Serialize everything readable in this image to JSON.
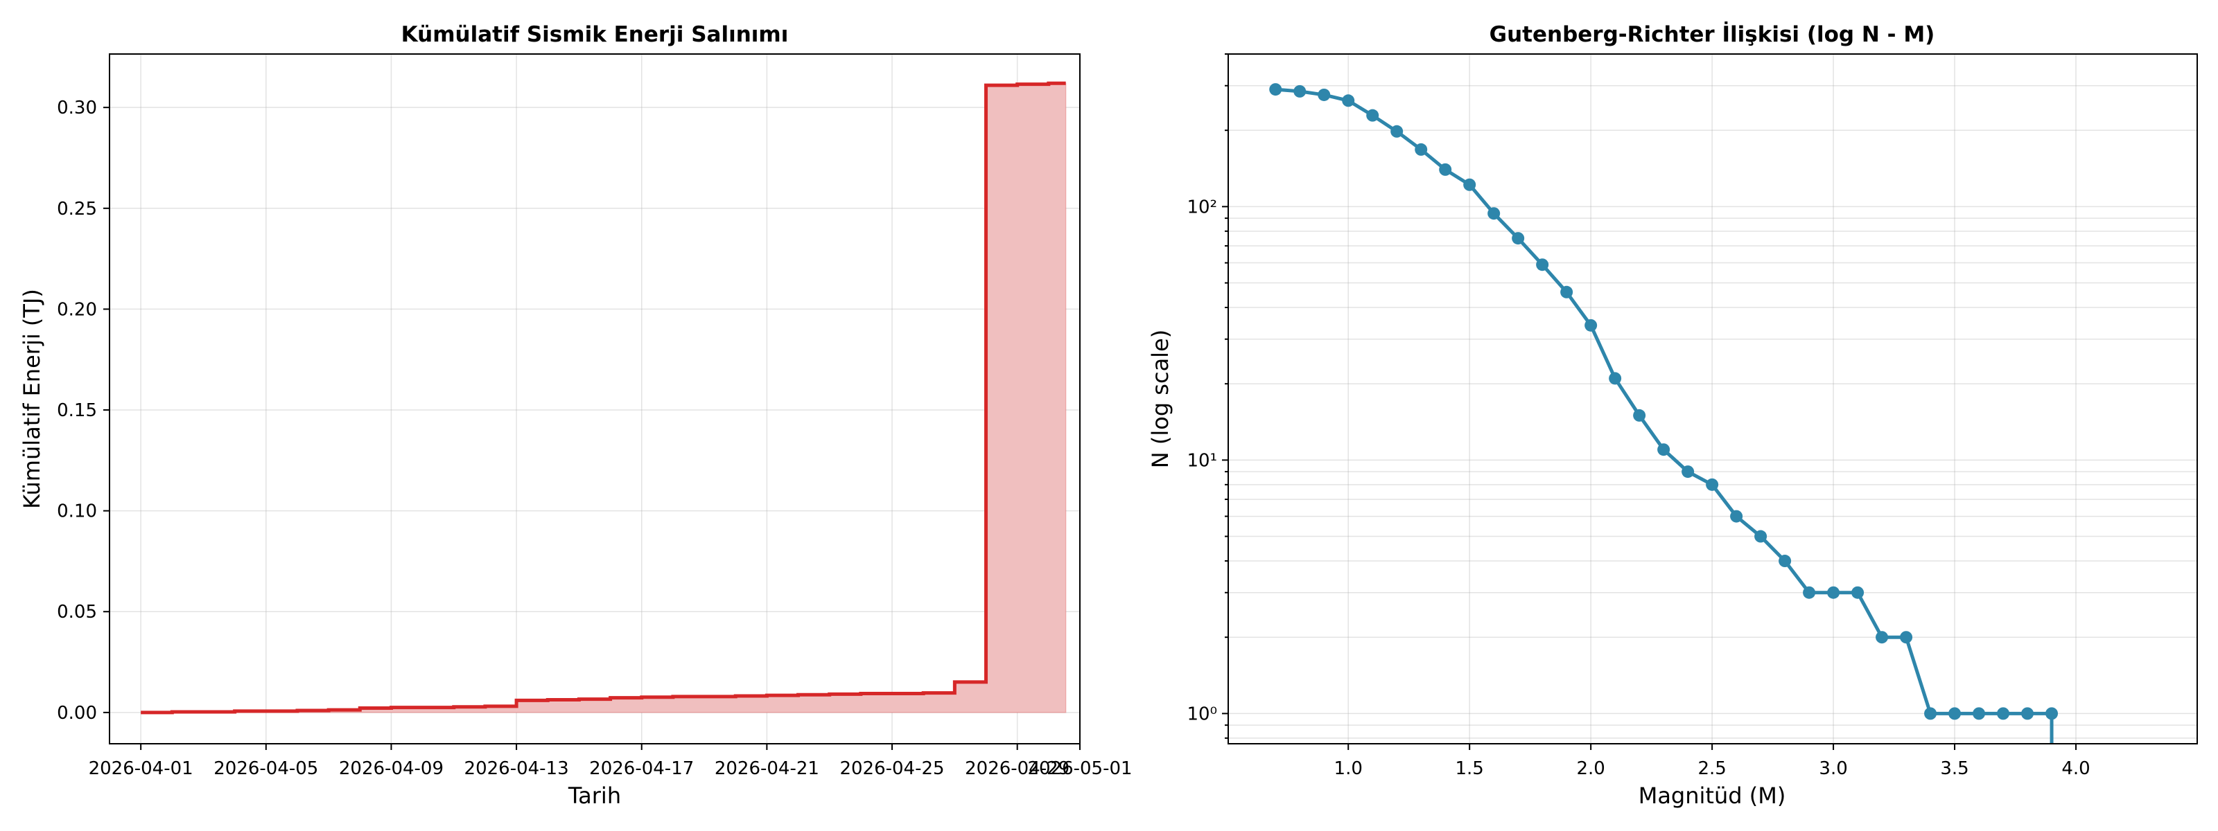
{
  "chart_data": [
    {
      "type": "area",
      "title": "Kümülatif Sismik Enerji Salınımı",
      "xlabel": "Tarih",
      "ylabel": "Kümülatif Enerji (TJ)",
      "x_ticks": [
        "2026-04-01",
        "2026-04-05",
        "2026-04-09",
        "2026-04-13",
        "2026-04-17",
        "2026-04-21",
        "2026-04-25",
        "2026-04-29",
        "2026-05-01"
      ],
      "y_ticks": [
        "0.00",
        "0.05",
        "0.10",
        "0.15",
        "0.20",
        "0.25",
        "0.30"
      ],
      "xlim": [
        "2026-03-31",
        "2026-05-01"
      ],
      "ylim": [
        -0.0155,
        0.3265
      ],
      "grid": true,
      "line_color": "#d62728",
      "fill_color": "#f0bfbf",
      "step": true,
      "points": [
        {
          "x": "2026-04-01",
          "y": 0.0
        },
        {
          "x": "2026-04-02",
          "y": 0.0003
        },
        {
          "x": "2026-04-04",
          "y": 0.0007
        },
        {
          "x": "2026-04-06",
          "y": 0.001
        },
        {
          "x": "2026-04-07",
          "y": 0.0013
        },
        {
          "x": "2026-04-08",
          "y": 0.0022
        },
        {
          "x": "2026-04-09",
          "y": 0.0025
        },
        {
          "x": "2026-04-11",
          "y": 0.0028
        },
        {
          "x": "2026-04-12",
          "y": 0.0031
        },
        {
          "x": "2026-04-13",
          "y": 0.006
        },
        {
          "x": "2026-04-14",
          "y": 0.0063
        },
        {
          "x": "2026-04-15",
          "y": 0.0066
        },
        {
          "x": "2026-04-16",
          "y": 0.0073
        },
        {
          "x": "2026-04-17",
          "y": 0.0076
        },
        {
          "x": "2026-04-18",
          "y": 0.0079
        },
        {
          "x": "2026-04-20",
          "y": 0.0082
        },
        {
          "x": "2026-04-21",
          "y": 0.0085
        },
        {
          "x": "2026-04-22",
          "y": 0.0088
        },
        {
          "x": "2026-04-23",
          "y": 0.0091
        },
        {
          "x": "2026-04-24",
          "y": 0.0094
        },
        {
          "x": "2026-04-26",
          "y": 0.0097
        },
        {
          "x": "2026-04-27",
          "y": 0.0151
        },
        {
          "x": "2026-04-28",
          "y": 0.311
        },
        {
          "x": "2026-04-29",
          "y": 0.3115
        },
        {
          "x": "2026-04-30",
          "y": 0.312
        }
      ]
    },
    {
      "type": "line",
      "title": "Gutenberg-Richter İlişkisi (log N - M)",
      "xlabel": "Magnitüd (M)",
      "ylabel": "N (log scale)",
      "x_ticks": [
        "1.0",
        "1.5",
        "2.0",
        "2.5",
        "3.0",
        "3.5",
        "4.0"
      ],
      "y_ticks": [
        "10⁰",
        "10¹",
        "10²"
      ],
      "xlim": [
        0.505,
        4.5
      ],
      "ylim": [
        0.76,
        400
      ],
      "y_scale": "log",
      "grid": true,
      "line_color": "#2e86ab",
      "marker": "circle",
      "x": [
        0.7,
        0.8,
        0.9,
        1.0,
        1.1,
        1.2,
        1.3,
        1.4,
        1.5,
        1.6,
        1.7,
        1.8,
        1.9,
        2.0,
        2.1,
        2.2,
        2.3,
        2.4,
        2.5,
        2.6,
        2.7,
        2.8,
        2.9,
        3.0,
        3.1,
        3.2,
        3.3,
        3.4,
        3.5,
        3.6,
        3.7,
        3.8,
        3.9
      ],
      "y": [
        290,
        285,
        276,
        262,
        229,
        198,
        168,
        140,
        122,
        94,
        75,
        59,
        46,
        34,
        21,
        15,
        11,
        9,
        8,
        6,
        5,
        4,
        3,
        3,
        3,
        2,
        2,
        1,
        1,
        1,
        1,
        1,
        1
      ],
      "tail_drop_at_x": 3.9
    }
  ]
}
